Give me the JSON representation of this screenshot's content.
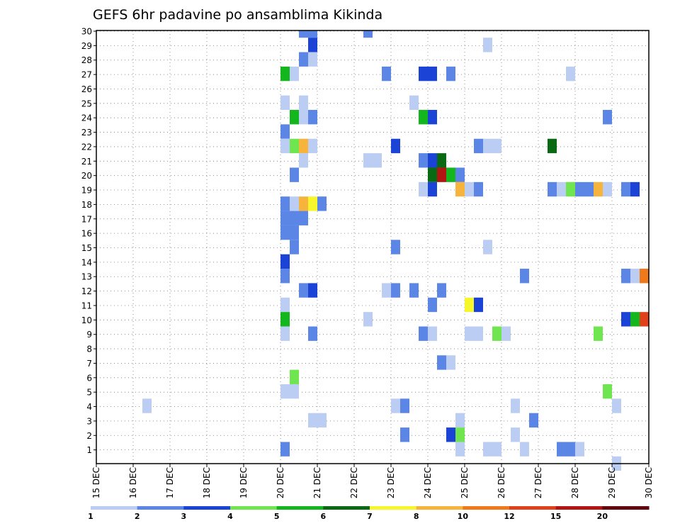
{
  "chart_data": {
    "type": "heatmap",
    "title": "GEFS 6hr padavine po ansamblima Kikinda",
    "xlabel": "",
    "ylabel": "",
    "x_tick_labels": [
      "15 DEC",
      "16 DEC",
      "17 DEC",
      "18 DEC",
      "19 DEC",
      "20 DEC",
      "21 DEC",
      "22 DEC",
      "23 DEC",
      "24 DEC",
      "25 DEC",
      "26 DEC",
      "27 DEC",
      "28 DEC",
      "29 DEC",
      "30 DEC"
    ],
    "xlim": [
      0,
      60
    ],
    "x_step": "6hr",
    "y_tick_labels": [
      "1",
      "2",
      "3",
      "4",
      "5",
      "6",
      "7",
      "8",
      "9",
      "10",
      "11",
      "12",
      "13",
      "14",
      "15",
      "16",
      "17",
      "18",
      "19",
      "20",
      "21",
      "22",
      "23",
      "24",
      "25",
      "26",
      "27",
      "28",
      "29",
      "30"
    ],
    "ylim": [
      1,
      30
    ],
    "grid": true,
    "colorbar": {
      "labels": [
        "1",
        "2",
        "3",
        "4",
        "5",
        "6",
        "7",
        "8",
        "10",
        "12",
        "15",
        "20"
      ],
      "colors": [
        "#bccdf4",
        "#5b86e6",
        "#1b44d6",
        "#6fe650",
        "#14b61d",
        "#0a6a14",
        "#f6f62c",
        "#f6b43c",
        "#f07a1a",
        "#e0411b",
        "#b21512",
        "#64060e"
      ]
    },
    "cells": [
      {
        "m": 30,
        "x": [
          [
            22,
            23,
            2
          ],
          [
            23,
            24,
            2
          ],
          [
            29,
            30,
            2
          ]
        ]
      },
      {
        "m": 29,
        "x": [
          [
            23,
            24,
            3
          ],
          [
            42,
            43,
            1
          ]
        ]
      },
      {
        "m": 28,
        "x": [
          [
            22,
            23,
            2
          ],
          [
            23,
            24,
            1
          ]
        ]
      },
      {
        "m": 27,
        "x": [
          [
            20,
            21,
            5
          ],
          [
            21,
            22,
            1
          ],
          [
            31,
            32,
            2
          ],
          [
            35,
            36,
            3
          ],
          [
            36,
            37,
            3
          ],
          [
            38,
            39,
            2
          ],
          [
            51,
            52,
            1
          ]
        ]
      },
      {
        "m": 25,
        "x": [
          [
            20,
            21,
            1
          ],
          [
            22,
            23,
            1
          ],
          [
            34,
            35,
            1
          ]
        ]
      },
      {
        "m": 24,
        "x": [
          [
            21,
            22,
            5
          ],
          [
            22,
            23,
            1
          ],
          [
            23,
            24,
            2
          ],
          [
            35,
            36,
            5
          ],
          [
            36,
            37,
            3
          ],
          [
            55,
            56,
            2
          ]
        ]
      },
      {
        "m": 23,
        "x": [
          [
            20,
            21,
            2
          ]
        ]
      },
      {
        "m": 22,
        "x": [
          [
            20,
            21,
            1
          ],
          [
            21,
            22,
            4
          ],
          [
            22,
            23,
            8
          ],
          [
            23,
            24,
            1
          ],
          [
            32,
            33,
            3
          ],
          [
            41,
            42,
            2
          ],
          [
            42,
            43,
            1
          ],
          [
            43,
            44,
            1
          ],
          [
            49,
            50,
            6
          ]
        ]
      },
      {
        "m": 21,
        "x": [
          [
            22,
            23,
            1
          ],
          [
            29,
            30,
            1
          ],
          [
            30,
            31,
            1
          ],
          [
            35,
            36,
            2
          ],
          [
            36,
            37,
            3
          ],
          [
            37,
            38,
            6
          ]
        ]
      },
      {
        "m": 20,
        "x": [
          [
            21,
            22,
            2
          ],
          [
            36,
            37,
            6
          ],
          [
            37,
            38,
            11
          ],
          [
            38,
            39,
            5
          ],
          [
            39,
            40,
            2
          ]
        ]
      },
      {
        "m": 19,
        "x": [
          [
            35,
            36,
            1
          ],
          [
            36,
            37,
            3
          ],
          [
            39,
            40,
            8
          ],
          [
            40,
            41,
            1
          ],
          [
            41,
            42,
            2
          ],
          [
            49,
            50,
            2
          ],
          [
            50,
            51,
            1
          ],
          [
            51,
            52,
            4
          ],
          [
            52,
            53,
            2
          ],
          [
            53,
            54,
            2
          ],
          [
            54,
            55,
            8
          ],
          [
            55,
            56,
            1
          ],
          [
            57,
            58,
            2
          ],
          [
            58,
            59,
            3
          ]
        ]
      },
      {
        "m": 18,
        "x": [
          [
            20,
            21,
            2
          ],
          [
            21,
            22,
            1
          ],
          [
            22,
            23,
            8
          ],
          [
            23,
            24,
            7
          ],
          [
            24,
            25,
            2
          ]
        ]
      },
      {
        "m": 17,
        "x": [
          [
            20,
            21,
            2
          ],
          [
            21,
            22,
            2
          ],
          [
            22,
            23,
            2
          ]
        ]
      },
      {
        "m": 16,
        "x": [
          [
            20,
            21,
            2
          ],
          [
            21,
            22,
            2
          ]
        ]
      },
      {
        "m": 15,
        "x": [
          [
            21,
            22,
            2
          ],
          [
            32,
            33,
            2
          ],
          [
            42,
            43,
            1
          ]
        ]
      },
      {
        "m": 14,
        "x": [
          [
            20,
            21,
            3
          ]
        ]
      },
      {
        "m": 13,
        "x": [
          [
            20,
            21,
            2
          ],
          [
            46,
            47,
            2
          ],
          [
            57,
            58,
            2
          ],
          [
            58,
            59,
            1
          ],
          [
            59,
            60,
            9
          ]
        ]
      },
      {
        "m": 12,
        "x": [
          [
            22,
            23,
            2
          ],
          [
            23,
            24,
            3
          ],
          [
            31,
            32,
            1
          ],
          [
            32,
            33,
            2
          ],
          [
            34,
            35,
            2
          ],
          [
            37,
            38,
            2
          ]
        ]
      },
      {
        "m": 11,
        "x": [
          [
            20,
            21,
            1
          ],
          [
            36,
            37,
            2
          ],
          [
            40,
            41,
            7
          ],
          [
            41,
            42,
            3
          ]
        ]
      },
      {
        "m": 10,
        "x": [
          [
            20,
            21,
            5
          ],
          [
            29,
            30,
            1
          ],
          [
            57,
            58,
            3
          ],
          [
            58,
            59,
            5
          ],
          [
            59,
            60,
            10
          ]
        ]
      },
      {
        "m": 9,
        "x": [
          [
            20,
            21,
            1
          ],
          [
            23,
            24,
            2
          ],
          [
            35,
            36,
            2
          ],
          [
            36,
            37,
            1
          ],
          [
            40,
            41,
            1
          ],
          [
            41,
            42,
            1
          ],
          [
            43,
            44,
            4
          ],
          [
            44,
            45,
            1
          ],
          [
            54,
            55,
            4
          ]
        ]
      },
      {
        "m": 7,
        "x": [
          [
            37,
            38,
            2
          ],
          [
            38,
            39,
            1
          ]
        ]
      },
      {
        "m": 6,
        "x": [
          [
            21,
            22,
            4
          ]
        ]
      },
      {
        "m": 5,
        "x": [
          [
            20,
            21,
            1
          ],
          [
            21,
            22,
            1
          ],
          [
            55,
            56,
            4
          ]
        ]
      },
      {
        "m": 4,
        "x": [
          [
            5,
            6,
            1
          ],
          [
            32,
            33,
            1
          ],
          [
            33,
            34,
            2
          ],
          [
            45,
            46,
            1
          ],
          [
            56,
            57,
            1
          ]
        ]
      },
      {
        "m": 3,
        "x": [
          [
            23,
            24,
            1
          ],
          [
            24,
            25,
            1
          ],
          [
            39,
            40,
            1
          ],
          [
            47,
            48,
            2
          ]
        ]
      },
      {
        "m": 2,
        "x": [
          [
            33,
            34,
            2
          ],
          [
            38,
            39,
            3
          ],
          [
            39,
            40,
            4
          ],
          [
            45,
            46,
            1
          ]
        ]
      },
      {
        "m": 1,
        "x": [
          [
            20,
            21,
            2
          ],
          [
            39,
            40,
            1
          ],
          [
            42,
            43,
            1
          ],
          [
            43,
            44,
            1
          ],
          [
            46,
            47,
            1
          ],
          [
            50,
            51,
            2
          ],
          [
            51,
            52,
            2
          ],
          [
            52,
            53,
            1
          ]
        ]
      },
      {
        "m": 0,
        "x": [
          [
            56,
            57,
            1
          ]
        ]
      }
    ]
  }
}
